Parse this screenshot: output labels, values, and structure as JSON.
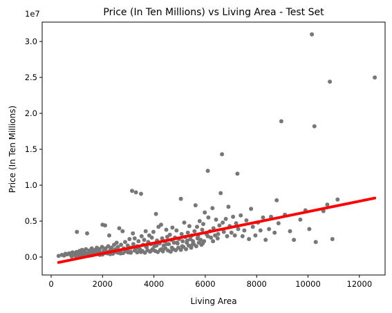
{
  "chart_data": {
    "type": "scatter",
    "title": "Price (In Ten Millions) vs Living Area - Test Set",
    "xlabel": "Living Area",
    "ylabel": "Price (In Ten Millions)",
    "y_offset_label": "1e7",
    "xlim": [
      -350,
      13000
    ],
    "ylim": [
      -2500000,
      32700000
    ],
    "x_ticks": [
      0,
      2000,
      4000,
      6000,
      8000,
      10000,
      12000
    ],
    "x_tick_labels": [
      "0",
      "2000",
      "4000",
      "6000",
      "8000",
      "10000",
      "12000"
    ],
    "y_ticks": [
      0,
      5000000,
      10000000,
      15000000,
      20000000,
      25000000,
      30000000
    ],
    "y_tick_labels": [
      "0.0",
      "0.5",
      "1.0",
      "1.5",
      "2.0",
      "2.5",
      "3.0"
    ],
    "grid": false,
    "colors": {
      "points": "#777777",
      "fit_line": "#ff0000"
    },
    "series": [
      {
        "kind": "scatter",
        "points": [
          [
            290,
            150000
          ],
          [
            420,
            300000
          ],
          [
            500,
            200000
          ],
          [
            560,
            450000
          ],
          [
            620,
            380000
          ],
          [
            700,
            520000
          ],
          [
            760,
            300000
          ],
          [
            830,
            650000
          ],
          [
            900,
            450000
          ],
          [
            980,
            700000
          ],
          [
            1000,
            3500000
          ],
          [
            1020,
            250000
          ],
          [
            1060,
            500000
          ],
          [
            1100,
            850000
          ],
          [
            1160,
            600000
          ],
          [
            1200,
            1000000
          ],
          [
            1240,
            400000
          ],
          [
            1300,
            750000
          ],
          [
            1350,
            1100000
          ],
          [
            1400,
            3300000
          ],
          [
            1420,
            500000
          ],
          [
            1480,
            900000
          ],
          [
            1520,
            650000
          ],
          [
            1580,
            1200000
          ],
          [
            1620,
            800000
          ],
          [
            1680,
            500000
          ],
          [
            1720,
            1000000
          ],
          [
            1780,
            1300000
          ],
          [
            1820,
            700000
          ],
          [
            1880,
            1100000
          ],
          [
            1920,
            600000
          ],
          [
            1980,
            1400000
          ],
          [
            2000,
            4500000
          ],
          [
            2050,
            900000
          ],
          [
            2100,
            4400000
          ],
          [
            2120,
            1200000
          ],
          [
            2180,
            700000
          ],
          [
            2220,
            1500000
          ],
          [
            2260,
            3000000
          ],
          [
            2300,
            1000000
          ],
          [
            2350,
            1300000
          ],
          [
            2400,
            800000
          ],
          [
            2450,
            1700000
          ],
          [
            2500,
            1100000
          ],
          [
            2550,
            2000000
          ],
          [
            2600,
            1400000
          ],
          [
            2650,
            4000000
          ],
          [
            2680,
            900000
          ],
          [
            2720,
            1700000
          ],
          [
            2780,
            3600000
          ],
          [
            2820,
            1200000
          ],
          [
            2880,
            2100000
          ],
          [
            2920,
            1000000
          ],
          [
            2980,
            1600000
          ],
          [
            3050,
            2500000
          ],
          [
            3100,
            1300000
          ],
          [
            3150,
            9200000
          ],
          [
            3180,
            3300000
          ],
          [
            3200,
            1800000
          ],
          [
            3250,
            2600000
          ],
          [
            3300,
            9000000
          ],
          [
            3350,
            1500000
          ],
          [
            3400,
            2200000
          ],
          [
            3450,
            1100000
          ],
          [
            3500,
            8800000
          ],
          [
            3520,
            2900000
          ],
          [
            3580,
            1700000
          ],
          [
            3620,
            2400000
          ],
          [
            3680,
            3600000
          ],
          [
            3720,
            1400000
          ],
          [
            3780,
            2100000
          ],
          [
            3820,
            3000000
          ],
          [
            3880,
            1800000
          ],
          [
            3920,
            2700000
          ],
          [
            3980,
            3500000
          ],
          [
            4020,
            1500000
          ],
          [
            4080,
            6000000
          ],
          [
            4120,
            2300000
          ],
          [
            4180,
            4200000
          ],
          [
            4220,
            1900000
          ],
          [
            4280,
            4500000
          ],
          [
            4320,
            2600000
          ],
          [
            4380,
            1600000
          ],
          [
            4420,
            2200000
          ],
          [
            4480,
            3800000
          ],
          [
            4520,
            2800000
          ],
          [
            4580,
            1800000
          ],
          [
            4620,
            3100000
          ],
          [
            4680,
            2400000
          ],
          [
            4720,
            4100000
          ],
          [
            4780,
            2000000
          ],
          [
            4820,
            2700000
          ],
          [
            4880,
            3700000
          ],
          [
            4920,
            1900000
          ],
          [
            4980,
            2500000
          ],
          [
            5050,
            8100000
          ],
          [
            5080,
            3200000
          ],
          [
            5120,
            2200000
          ],
          [
            5180,
            4800000
          ],
          [
            5220,
            2800000
          ],
          [
            5280,
            2000000
          ],
          [
            5320,
            3400000
          ],
          [
            5380,
            4300000
          ],
          [
            5420,
            2500000
          ],
          [
            5480,
            3000000
          ],
          [
            5520,
            2200000
          ],
          [
            5580,
            3600000
          ],
          [
            5620,
            7200000
          ],
          [
            5680,
            4200000
          ],
          [
            5720,
            2900000
          ],
          [
            5780,
            5000000
          ],
          [
            5820,
            2400000
          ],
          [
            5880,
            3800000
          ],
          [
            5920,
            4600000
          ],
          [
            5980,
            6200000
          ],
          [
            6050,
            3200000
          ],
          [
            6100,
            12000000
          ],
          [
            6120,
            5500000
          ],
          [
            6180,
            3600000
          ],
          [
            6220,
            2700000
          ],
          [
            6280,
            6800000
          ],
          [
            6320,
            4000000
          ],
          [
            6380,
            3000000
          ],
          [
            6420,
            5200000
          ],
          [
            6480,
            2600000
          ],
          [
            6550,
            4400000
          ],
          [
            6600,
            8900000
          ],
          [
            6650,
            14300000
          ],
          [
            6680,
            4800000
          ],
          [
            6720,
            3500000
          ],
          [
            6800,
            5300000
          ],
          [
            6850,
            2900000
          ],
          [
            6900,
            7000000
          ],
          [
            6950,
            4300000
          ],
          [
            7020,
            3400000
          ],
          [
            7080,
            5600000
          ],
          [
            7150,
            3000000
          ],
          [
            7200,
            4700000
          ],
          [
            7250,
            11600000
          ],
          [
            7280,
            3900000
          ],
          [
            7380,
            5800000
          ],
          [
            7450,
            2900000
          ],
          [
            7520,
            3700000
          ],
          [
            7600,
            5100000
          ],
          [
            7700,
            2500000
          ],
          [
            7780,
            6700000
          ],
          [
            7850,
            4200000
          ],
          [
            7950,
            3000000
          ],
          [
            8050,
            4800000
          ],
          [
            8150,
            3700000
          ],
          [
            8250,
            5500000
          ],
          [
            8350,
            2400000
          ],
          [
            8480,
            3900000
          ],
          [
            8560,
            5600000
          ],
          [
            8700,
            3400000
          ],
          [
            8780,
            7900000
          ],
          [
            8850,
            4700000
          ],
          [
            8960,
            18900000
          ],
          [
            9100,
            5900000
          ],
          [
            9300,
            3600000
          ],
          [
            9450,
            2400000
          ],
          [
            9700,
            5200000
          ],
          [
            9900,
            6500000
          ],
          [
            10050,
            3900000
          ],
          [
            10150,
            31000000
          ],
          [
            10250,
            18200000
          ],
          [
            10300,
            2100000
          ],
          [
            10600,
            6400000
          ],
          [
            10750,
            7300000
          ],
          [
            10850,
            24400000
          ],
          [
            10950,
            2500000
          ],
          [
            11150,
            8000000
          ],
          [
            12600,
            25000000
          ],
          [
            3000,
            800000
          ],
          [
            3100,
            700000
          ],
          [
            3250,
            900000
          ],
          [
            3350,
            650000
          ],
          [
            3450,
            1000000
          ],
          [
            3550,
            850000
          ],
          [
            3650,
            600000
          ],
          [
            3750,
            950000
          ],
          [
            3850,
            750000
          ],
          [
            3950,
            1100000
          ],
          [
            4050,
            850000
          ],
          [
            4150,
            700000
          ],
          [
            4250,
            1000000
          ],
          [
            4350,
            800000
          ],
          [
            4450,
            1200000
          ],
          [
            4550,
            900000
          ],
          [
            4650,
            750000
          ],
          [
            4750,
            1100000
          ],
          [
            4850,
            950000
          ],
          [
            4950,
            1300000
          ],
          [
            5050,
            1000000
          ],
          [
            5150,
            1400000
          ],
          [
            5250,
            1100000
          ],
          [
            5350,
            1600000
          ],
          [
            5450,
            1300000
          ],
          [
            5550,
            1800000
          ],
          [
            5650,
            1500000
          ],
          [
            5750,
            2000000
          ],
          [
            5850,
            1700000
          ],
          [
            5950,
            2200000
          ],
          [
            1200,
            200000
          ],
          [
            1400,
            300000
          ],
          [
            1600,
            250000
          ],
          [
            1800,
            400000
          ],
          [
            2000,
            350000
          ],
          [
            2200,
            500000
          ],
          [
            2400,
            450000
          ],
          [
            2600,
            600000
          ],
          [
            2800,
            550000
          ],
          [
            3000,
            650000
          ],
          [
            800,
            100000
          ],
          [
            950,
            150000
          ],
          [
            1100,
            200000
          ],
          [
            1300,
            300000
          ],
          [
            1500,
            200000
          ],
          [
            1700,
            350000
          ],
          [
            1900,
            300000
          ],
          [
            2100,
            550000
          ],
          [
            2300,
            400000
          ],
          [
            2500,
            700000
          ],
          [
            2700,
            500000
          ],
          [
            2900,
            800000
          ],
          [
            3100,
            600000
          ],
          [
            3300,
            1200000
          ],
          [
            3500,
            700000
          ],
          [
            3700,
            1400000
          ],
          [
            3900,
            900000
          ],
          [
            4100,
            1600000
          ],
          [
            4300,
            1100000
          ],
          [
            4500,
            1800000
          ],
          [
            4700,
            1300000
          ],
          [
            4900,
            2000000
          ],
          [
            5100,
            1500000
          ],
          [
            5300,
            2300000
          ],
          [
            5500,
            1700000
          ],
          [
            5700,
            2600000
          ],
          [
            5900,
            1900000
          ],
          [
            6100,
            2900000
          ],
          [
            6300,
            2200000
          ],
          [
            6500,
            3200000
          ]
        ]
      },
      {
        "kind": "fit_line",
        "points": [
          [
            290,
            -750000
          ],
          [
            12600,
            8200000
          ]
        ]
      }
    ]
  }
}
